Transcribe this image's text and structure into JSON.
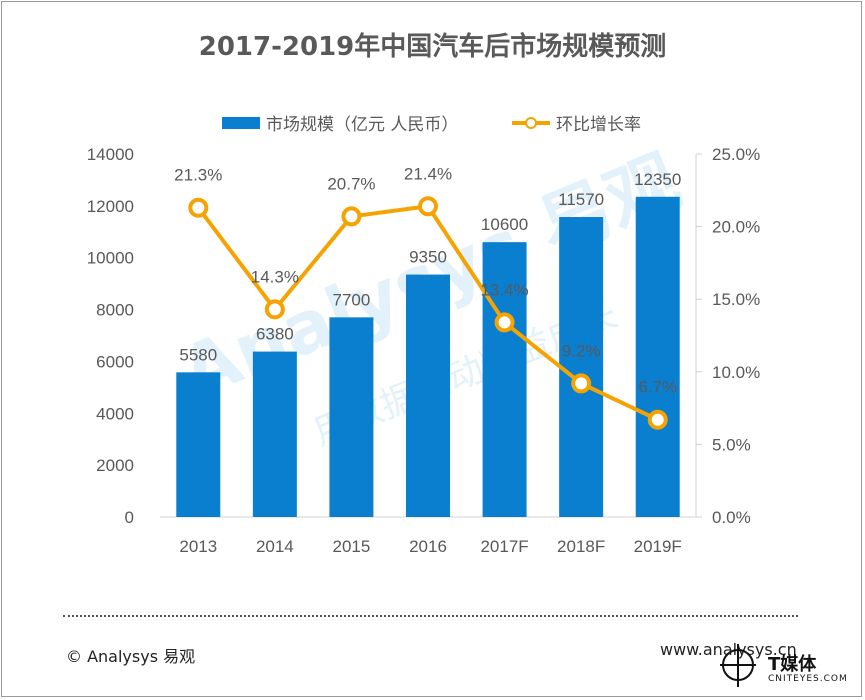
{
  "colors": {
    "bar": "#0a7fd0",
    "line": "#f5a302",
    "text": "#595959",
    "axis": "#d0d0d0",
    "watermark": "#7fc0ec"
  },
  "chart_data": {
    "type": "bar",
    "title": "2017-2019年中国汽车后市场规模预测",
    "categories": [
      "2013",
      "2014",
      "2015",
      "2016",
      "2017F",
      "2018F",
      "2019F"
    ],
    "series": [
      {
        "name": "市场规模（亿元 人民币）",
        "type": "bar",
        "axis": "left",
        "values": [
          5580,
          6380,
          7700,
          9350,
          10600,
          11570,
          12350
        ],
        "labels": [
          "5580",
          "6380",
          "7700",
          "9350",
          "10600",
          "11570",
          "12350"
        ]
      },
      {
        "name": "环比增长率",
        "type": "line",
        "axis": "right",
        "values": [
          21.3,
          14.3,
          20.7,
          21.4,
          13.4,
          9.2,
          6.7
        ],
        "labels": [
          "21.3%",
          "14.3%",
          "20.7%",
          "21.4%",
          "13.4%",
          "9.2%",
          "6.7%"
        ]
      }
    ],
    "y_left": {
      "min": 0,
      "max": 14000,
      "ticks": [
        "0",
        "2000",
        "4000",
        "6000",
        "8000",
        "10000",
        "12000",
        "14000"
      ]
    },
    "y_right": {
      "min": 0,
      "max": 25,
      "ticks": [
        "0.0%",
        "5.0%",
        "10.0%",
        "15.0%",
        "20.0%",
        "25.0%"
      ]
    },
    "legend": "top-center",
    "grid": false
  },
  "watermark": {
    "brand": "Analysys 易观",
    "slogan": "用数据驱动精益成长"
  },
  "footer": {
    "copyright": "© Analysys 易观",
    "website": "www.analysys.cn",
    "tmt_name": "T媒体",
    "tmt_sub": "CNITEYES.COM"
  }
}
